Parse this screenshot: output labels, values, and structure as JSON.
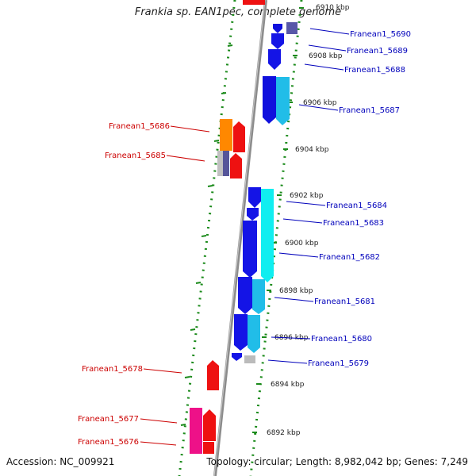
{
  "title": "Frankia sp. EAN1pec, complete genome",
  "accession": "Accession: NC_009921",
  "summary": "Topology: circular; Length: 8,982,042 bp; Genes: 7,249",
  "colors": {
    "backbone": "#999999",
    "fwd_label": "#0000bb",
    "rev_label": "#cc0000",
    "tick_green": "#1a8a1a"
  },
  "kbp_labels": [
    "6910 kbp",
    "6908 kbp",
    "6906 kbp",
    "6904 kbp",
    "6902 kbp",
    "6900 kbp",
    "6898 kbp",
    "6896 kbp",
    "6894 kbp",
    "6892 kbp"
  ],
  "genes_forward": [
    "Franean1_5690",
    "Franean1_5689",
    "Franean1_5688",
    "Franean1_5687",
    "Franean1_5684",
    "Franean1_5683",
    "Franean1_5682",
    "Franean1_5681",
    "Franean1_5680",
    "Franean1_5679"
  ],
  "genes_reverse": [
    "Franean1_5686",
    "Franean1_5685",
    "Franean1_5678",
    "Franean1_5677",
    "Franean1_5676"
  ]
}
